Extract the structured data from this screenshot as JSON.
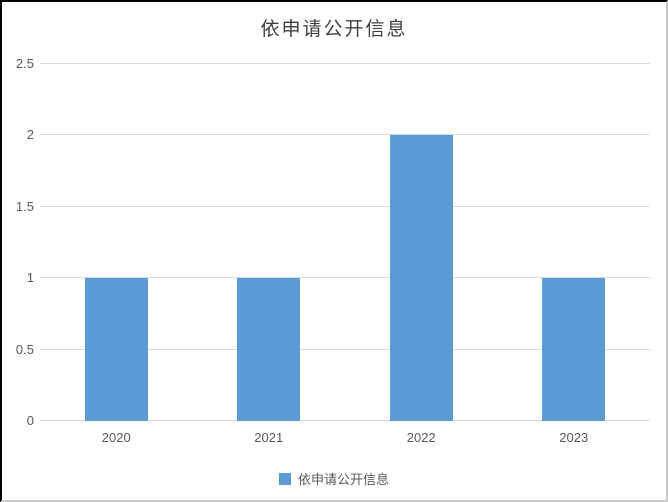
{
  "chart_data": {
    "type": "bar",
    "title": "依申请公开信息",
    "categories": [
      "2020",
      "2021",
      "2022",
      "2023"
    ],
    "series": [
      {
        "name": "依申请公开信息",
        "values": [
          1,
          1,
          2,
          1
        ]
      }
    ],
    "ylim": [
      0,
      2.5
    ],
    "yticks": [
      0,
      0.5,
      1,
      1.5,
      2,
      2.5
    ],
    "ytick_labels": [
      "0",
      "0.5",
      "1",
      "1.5",
      "2",
      "2.5"
    ],
    "xlabel": "",
    "ylabel": "",
    "grid": true,
    "legend": [
      "依申请公开信息"
    ],
    "legend_position": "bottom",
    "colors": {
      "bar": "#5B9BD5",
      "gridline": "#D9D9D9",
      "title_text": "#404040",
      "tick_text": "#595959",
      "legend_text": "#595959"
    }
  }
}
